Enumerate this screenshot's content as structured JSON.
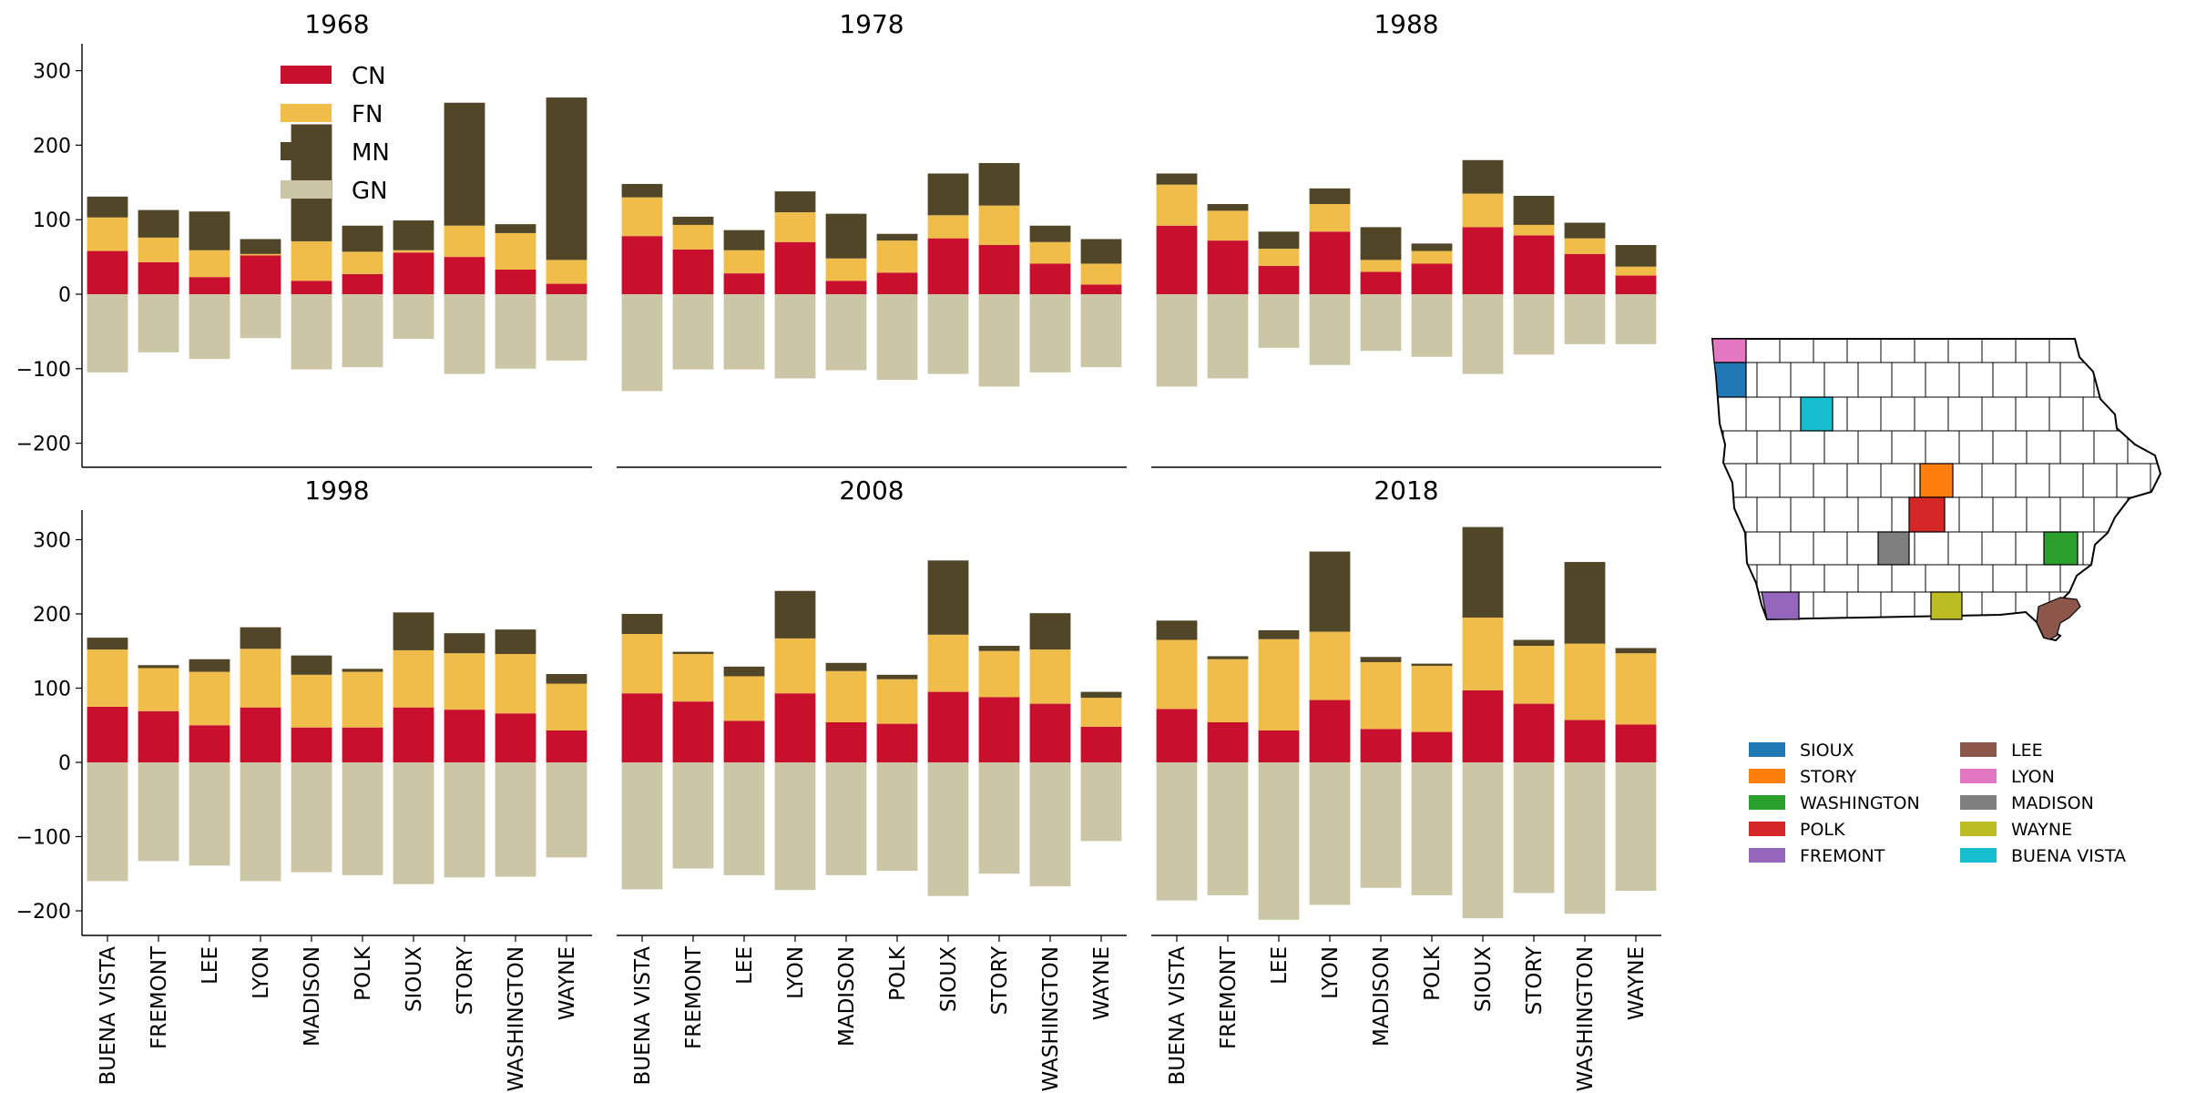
{
  "colors": {
    "CN": "#c8102e",
    "FN": "#f0bd4a",
    "MN": "#514628",
    "GN": "#cbc7a6"
  },
  "legend_main": [
    "CN",
    "FN",
    "MN",
    "GN"
  ],
  "chart_data": {
    "type": "bar",
    "stacked": true,
    "categories": [
      "BUENA VISTA",
      "FREMONT",
      "LEE",
      "LYON",
      "MADISON",
      "POLK",
      "SIOUX",
      "STORY",
      "WASHINGTON",
      "WAYNE"
    ],
    "yticks": [
      -200,
      -100,
      0,
      100,
      200,
      300
    ],
    "ylim": [
      -230,
      340
    ],
    "grid": false,
    "legend_position": "upper-left-of-first-panel",
    "panels": [
      {
        "title": "1968",
        "CN": [
          58,
          43,
          23,
          52,
          18,
          27,
          56,
          50,
          33,
          14
        ],
        "FN": [
          45,
          33,
          36,
          2,
          53,
          30,
          3,
          42,
          49,
          32
        ],
        "MN": [
          28,
          37,
          52,
          20,
          157,
          35,
          40,
          165,
          12,
          218
        ],
        "GN": [
          -105,
          -78,
          -87,
          -59,
          -101,
          -98,
          -60,
          -107,
          -100,
          -89
        ]
      },
      {
        "title": "1978",
        "CN": [
          78,
          60,
          28,
          70,
          18,
          29,
          75,
          66,
          41,
          13
        ],
        "FN": [
          52,
          33,
          31,
          40,
          30,
          43,
          31,
          53,
          29,
          28
        ],
        "MN": [
          18,
          11,
          27,
          28,
          60,
          9,
          56,
          57,
          22,
          33
        ],
        "GN": [
          -130,
          -101,
          -101,
          -113,
          -102,
          -115,
          -107,
          -124,
          -105,
          -98
        ]
      },
      {
        "title": "1988",
        "CN": [
          92,
          72,
          38,
          84,
          30,
          41,
          90,
          79,
          54,
          25
        ],
        "FN": [
          55,
          40,
          23,
          37,
          16,
          17,
          45,
          14,
          21,
          12
        ],
        "MN": [
          15,
          9,
          23,
          21,
          44,
          10,
          45,
          39,
          21,
          29
        ],
        "GN": [
          -124,
          -113,
          -72,
          -95,
          -76,
          -84,
          -107,
          -81,
          -67,
          -67
        ]
      },
      {
        "title": "1998",
        "CN": [
          75,
          69,
          50,
          74,
          47,
          47,
          74,
          71,
          66,
          43
        ],
        "FN": [
          77,
          58,
          72,
          79,
          71,
          75,
          77,
          76,
          80,
          63
        ],
        "MN": [
          16,
          4,
          17,
          29,
          26,
          4,
          51,
          27,
          33,
          13
        ],
        "GN": [
          -160,
          -133,
          -139,
          -160,
          -148,
          -152,
          -164,
          -155,
          -154,
          -128
        ]
      },
      {
        "title": "2008",
        "CN": [
          93,
          82,
          56,
          93,
          54,
          52,
          95,
          88,
          79,
          48
        ],
        "FN": [
          80,
          64,
          60,
          74,
          69,
          60,
          77,
          62,
          73,
          39
        ],
        "MN": [
          27,
          3,
          13,
          64,
          11,
          6,
          100,
          7,
          49,
          8
        ],
        "GN": [
          -171,
          -143,
          -152,
          -172,
          -152,
          -146,
          -180,
          -150,
          -167,
          -106
        ]
      },
      {
        "title": "2018",
        "CN": [
          72,
          54,
          43,
          84,
          45,
          41,
          97,
          79,
          57,
          51
        ],
        "FN": [
          93,
          85,
          123,
          92,
          90,
          89,
          98,
          78,
          103,
          96
        ],
        "MN": [
          26,
          4,
          12,
          108,
          7,
          3,
          122,
          8,
          110,
          7
        ],
        "GN": [
          -186,
          -179,
          -212,
          -192,
          -169,
          -179,
          -210,
          -176,
          -204,
          -173
        ]
      }
    ]
  },
  "map": {
    "county_colors": {
      "SIOUX": "#1f77b4",
      "STORY": "#ff7f0e",
      "WASHINGTON": "#2ca02c",
      "POLK": "#d62728",
      "FREMONT": "#9467bd",
      "LEE": "#8c564b",
      "LYON": "#e377c2",
      "MADISON": "#7f7f7f",
      "WAYNE": "#bcbd22",
      "BUENA VISTA": "#17becf"
    },
    "legend_col1": [
      "SIOUX",
      "STORY",
      "WASHINGTON",
      "POLK",
      "FREMONT"
    ],
    "legend_col2": [
      "LEE",
      "LYON",
      "MADISON",
      "WAYNE",
      "BUENA VISTA"
    ]
  }
}
